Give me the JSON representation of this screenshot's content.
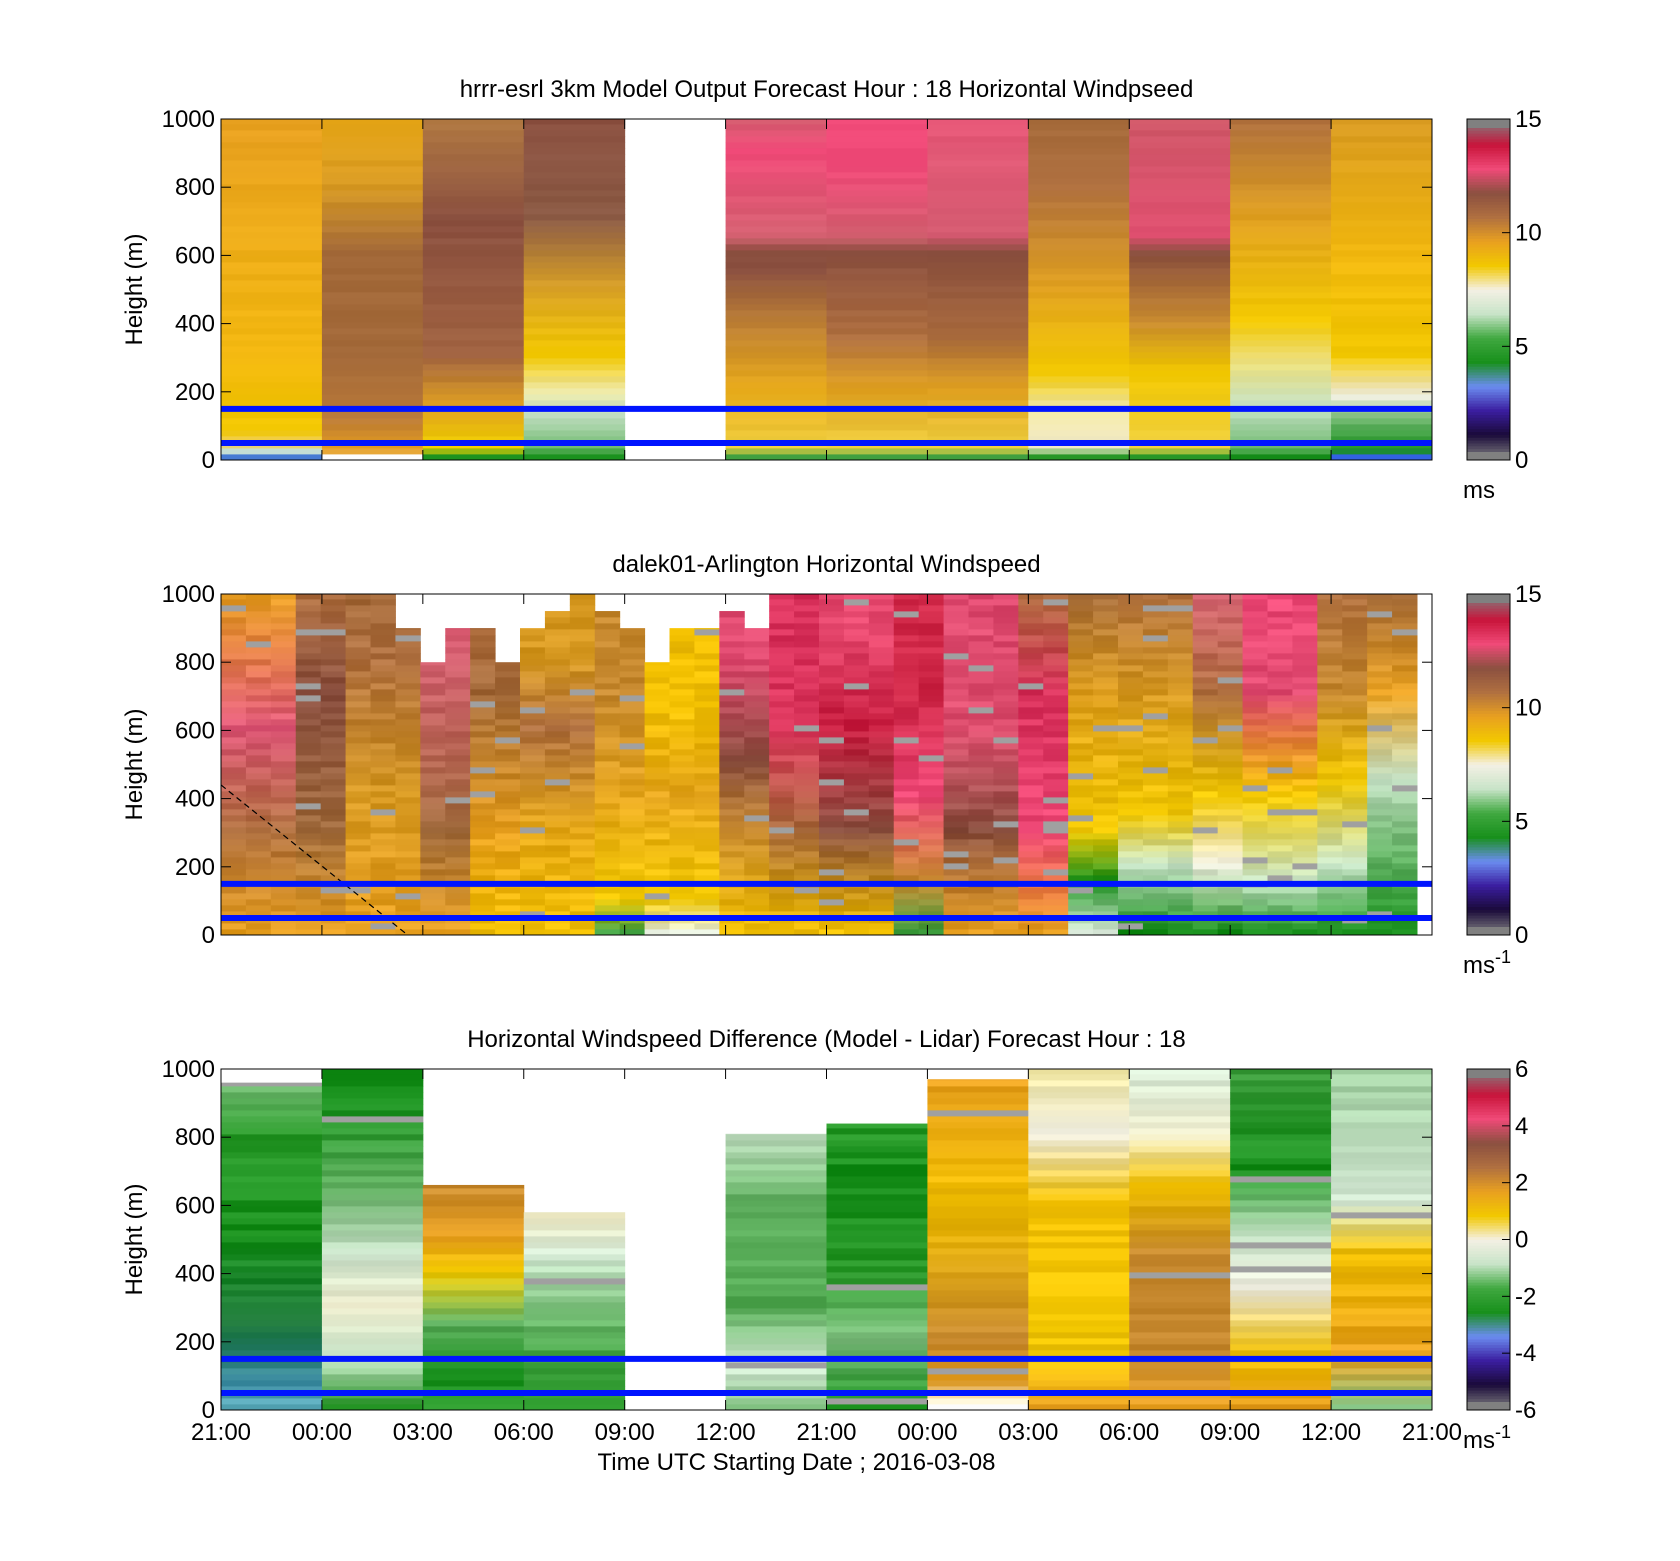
{
  "chart_data": [
    {
      "type": "heatmap",
      "title": "hrrr-esrl 3km Model Output   Forecast Hour : 18 Horizontal Windpseed",
      "ylabel": "Height (m)",
      "xlabel": "",
      "ylim": [
        0,
        1000
      ],
      "yticks": [
        0,
        200,
        400,
        600,
        800,
        1000
      ],
      "xticks": [
        "",
        "",
        "",
        "",
        "",
        "",
        "",
        "",
        "",
        "",
        "",
        "",
        ""
      ],
      "clim": [
        0,
        15
      ],
      "colorbar_ticks": [
        0,
        5,
        10,
        15
      ],
      "units": "ms",
      "reference_lines_m": [
        150,
        50
      ],
      "column_profiles": [
        [
          [
            0,
            "#4a7fd8"
          ],
          [
            20,
            "#d0e6d0"
          ],
          [
            40,
            "#f0d060"
          ],
          [
            80,
            "#f2c800"
          ],
          [
            300,
            "#f3b810"
          ],
          [
            600,
            "#eeae18"
          ],
          [
            1000,
            "#e8a020"
          ]
        ],
        [
          [
            0,
            "#ffffff"
          ],
          [
            20,
            "#e8a020"
          ],
          [
            120,
            "#b87838"
          ],
          [
            300,
            "#a46a3a"
          ],
          [
            600,
            "#a46a3a"
          ],
          [
            800,
            "#d89a22"
          ],
          [
            1000,
            "#e8a818"
          ]
        ],
        [
          [
            0,
            "#18901c"
          ],
          [
            30,
            "#f0d000"
          ],
          [
            150,
            "#e0a020"
          ],
          [
            300,
            "#a06240"
          ],
          [
            700,
            "#8b5040"
          ],
          [
            1000,
            "#b07840"
          ]
        ],
        [
          [
            0,
            "#18901c"
          ],
          [
            40,
            "#7cc07c"
          ],
          [
            130,
            "#c8e2c8"
          ],
          [
            200,
            "#f0e8a0"
          ],
          [
            300,
            "#f2c800"
          ],
          [
            500,
            "#d8a028"
          ],
          [
            700,
            "#8b5a44"
          ],
          [
            1000,
            "#8b5040"
          ]
        ],
        null,
        [
          [
            0,
            "#40a040"
          ],
          [
            30,
            "#f0d040"
          ],
          [
            200,
            "#e6a818"
          ],
          [
            350,
            "#c88a30"
          ],
          [
            550,
            "#8b5040"
          ],
          [
            600,
            "#8b5040"
          ],
          [
            650,
            "#d46070"
          ],
          [
            900,
            "#f04a78"
          ],
          [
            1000,
            "#d46070"
          ]
        ],
        [
          [
            0,
            "#40a040"
          ],
          [
            30,
            "#f0d040"
          ],
          [
            200,
            "#e0a020"
          ],
          [
            350,
            "#b07040"
          ],
          [
            600,
            "#8b5040"
          ],
          [
            650,
            "#d46070"
          ],
          [
            850,
            "#f04a78"
          ],
          [
            1000,
            "#f04a78"
          ]
        ],
        [
          [
            0,
            "#40a040"
          ],
          [
            30,
            "#f0d040"
          ],
          [
            200,
            "#e0a020"
          ],
          [
            350,
            "#a86a3c"
          ],
          [
            600,
            "#8b5040"
          ],
          [
            650,
            "#d45a70"
          ],
          [
            1000,
            "#e85878"
          ]
        ],
        [
          [
            0,
            "#2a9a2a"
          ],
          [
            30,
            "#f0e8c8"
          ],
          [
            150,
            "#f2e8a0"
          ],
          [
            250,
            "#f2c800"
          ],
          [
            500,
            "#e0a020"
          ],
          [
            800,
            "#b07040"
          ],
          [
            1000,
            "#a46a3a"
          ]
        ],
        [
          [
            0,
            "#2a9a2a"
          ],
          [
            30,
            "#f0d040"
          ],
          [
            250,
            "#f2c800"
          ],
          [
            400,
            "#c88a30"
          ],
          [
            600,
            "#8b5040"
          ],
          [
            650,
            "#e05070"
          ],
          [
            1000,
            "#d05868"
          ]
        ],
        [
          [
            0,
            "#18901c"
          ],
          [
            40,
            "#7cc07c"
          ],
          [
            150,
            "#c8e4c8"
          ],
          [
            300,
            "#f2e070"
          ],
          [
            400,
            "#f2c800"
          ],
          [
            700,
            "#e0a020"
          ],
          [
            1000,
            "#b07040"
          ]
        ],
        [
          [
            0,
            "#3060e0"
          ],
          [
            20,
            "#18901c"
          ],
          [
            100,
            "#60b060"
          ],
          [
            180,
            "#f0eee0"
          ],
          [
            300,
            "#f2c800"
          ],
          [
            600,
            "#f2b810"
          ],
          [
            1000,
            "#d89a22"
          ]
        ]
      ]
    },
    {
      "type": "heatmap",
      "title": "dalek01-Arlington  Horizontal Windspeed",
      "ylabel": "Height (m)",
      "xlabel": "",
      "ylim": [
        0,
        1000
      ],
      "yticks": [
        0,
        200,
        400,
        600,
        800,
        1000
      ],
      "xticks": [
        "",
        "",
        "",
        "",
        "",
        "",
        "",
        "",
        "",
        "",
        "",
        "",
        ""
      ],
      "clim": [
        0,
        15
      ],
      "colorbar_ticks": [
        0,
        5,
        10,
        15
      ],
      "units": "ms",
      "units_exponent": "-1",
      "reference_lines_m": [
        150,
        50
      ],
      "dashed_line": {
        "from": [
          0,
          440
        ],
        "to": [
          1.85,
          0
        ]
      },
      "column_tops_m": [
        1000,
        1000,
        1000,
        1000,
        1000,
        1000,
        1000,
        900,
        800,
        900,
        900,
        800,
        900,
        950,
        1000,
        950,
        900,
        800,
        900,
        900,
        950,
        900,
        1000,
        1000,
        1000,
        1000,
        1000,
        1000,
        1000,
        1000,
        1000,
        1000,
        1000,
        1000,
        1000,
        1000,
        1000,
        1000,
        1000,
        1000,
        1000,
        1000,
        1000,
        1000,
        1000,
        1000,
        1000,
        1000
      ],
      "column_profiles": [
        [
          [
            0,
            "#e8a020"
          ],
          [
            300,
            "#b07040"
          ],
          [
            600,
            "#e05878"
          ],
          [
            1000,
            "#e8a020"
          ]
        ],
        [
          [
            0,
            "#e8a020"
          ],
          [
            300,
            "#a06a3c"
          ],
          [
            700,
            "#8b5040"
          ],
          [
            1000,
            "#b07040"
          ]
        ],
        [
          [
            0,
            "#e8a020"
          ],
          [
            400,
            "#d89a22"
          ],
          [
            800,
            "#b07040"
          ],
          [
            1000,
            "#a46a3a"
          ]
        ],
        [
          [
            0,
            "#e8a020"
          ],
          [
            300,
            "#a06a3c"
          ],
          [
            800,
            "#d46070"
          ],
          [
            1000,
            "#e85878"
          ]
        ],
        [
          [
            0,
            "#f2c000"
          ],
          [
            300,
            "#e8a020"
          ],
          [
            700,
            "#a46a3a"
          ],
          [
            900,
            "#b07040"
          ]
        ],
        [
          [
            0,
            "#f2c000"
          ],
          [
            300,
            "#e6a818"
          ],
          [
            600,
            "#b07040"
          ],
          [
            800,
            "#d89a22"
          ]
        ],
        [
          [
            0,
            "#40a040"
          ],
          [
            100,
            "#f2c800"
          ],
          [
            400,
            "#e8a820"
          ],
          [
            700,
            "#c88a30"
          ]
        ],
        [
          [
            0,
            "#e8f0e0"
          ],
          [
            100,
            "#f2c800"
          ],
          [
            400,
            "#e8a820"
          ],
          [
            650,
            "#f2c000"
          ]
        ],
        [
          [
            0,
            "#f2c000"
          ],
          [
            300,
            "#c88a30"
          ],
          [
            500,
            "#8b5040"
          ],
          [
            800,
            "#e04a70"
          ]
        ],
        [
          [
            0,
            "#f2c000"
          ],
          [
            300,
            "#a86a3c"
          ],
          [
            600,
            "#e03a60"
          ],
          [
            850,
            "#d8305a"
          ]
        ],
        [
          [
            0,
            "#f2c000"
          ],
          [
            300,
            "#8b5040"
          ],
          [
            600,
            "#c81e40"
          ],
          [
            900,
            "#e84a70"
          ]
        ],
        [
          [
            0,
            "#40a040"
          ],
          [
            150,
            "#c88a30"
          ],
          [
            400,
            "#f04a78"
          ],
          [
            700,
            "#d02848"
          ]
        ],
        [
          [
            0,
            "#e8a020"
          ],
          [
            300,
            "#8b5040"
          ],
          [
            600,
            "#e05070"
          ],
          [
            1000,
            "#e04a70"
          ]
        ],
        [
          [
            0,
            "#e8a020"
          ],
          [
            300,
            "#f04a78"
          ],
          [
            700,
            "#d8305a"
          ],
          [
            1000,
            "#b07040"
          ]
        ],
        [
          [
            0,
            "#e0f0e0"
          ],
          [
            150,
            "#18901c"
          ],
          [
            300,
            "#f2c800"
          ],
          [
            700,
            "#e0a020"
          ],
          [
            1000,
            "#a46a3a"
          ]
        ],
        [
          [
            0,
            "#18901c"
          ],
          [
            200,
            "#c8e4c8"
          ],
          [
            350,
            "#f2c800"
          ],
          [
            700,
            "#d89a22"
          ],
          [
            1000,
            "#b07040"
          ]
        ],
        [
          [
            0,
            "#18901c"
          ],
          [
            200,
            "#f0eee0"
          ],
          [
            400,
            "#f2c800"
          ],
          [
            700,
            "#b07040"
          ],
          [
            1000,
            "#d46070"
          ]
        ],
        [
          [
            0,
            "#18901c"
          ],
          [
            150,
            "#c8e4c8"
          ],
          [
            400,
            "#f2c800"
          ],
          [
            700,
            "#e04a70"
          ],
          [
            1000,
            "#f04a78"
          ]
        ],
        [
          [
            0,
            "#18901c"
          ],
          [
            200,
            "#c8e4c8"
          ],
          [
            450,
            "#f2c800"
          ],
          [
            700,
            "#c88a30"
          ],
          [
            1000,
            "#b07040"
          ]
        ],
        [
          [
            0,
            "#18901c"
          ],
          [
            300,
            "#80c080"
          ],
          [
            450,
            "#c8e4c8"
          ],
          [
            700,
            "#e8a020"
          ],
          [
            1000,
            "#a46a3a"
          ]
        ]
      ]
    },
    {
      "type": "heatmap",
      "title": "Horizontal Windspeed Difference (Model - Lidar) Forecast Hour : 18",
      "ylabel": "Height (m)",
      "xlabel": "Time UTC  Starting Date ; 2016-03-08",
      "ylim": [
        0,
        1000
      ],
      "yticks": [
        0,
        200,
        400,
        600,
        800,
        1000
      ],
      "xticks": [
        "21:00",
        "00:00",
        "03:00",
        "06:00",
        "09:00",
        "12:00",
        "21:00",
        "00:00",
        "03:00",
        "06:00",
        "09:00",
        "12:00",
        "21:00"
      ],
      "clim": [
        -6,
        6
      ],
      "colorbar_ticks": [
        -6,
        -4,
        -2,
        0,
        2,
        4,
        6
      ],
      "units": "ms",
      "units_exponent": "-1",
      "reference_lines_m": [
        150,
        50
      ],
      "column_tops_m": [
        960,
        1000,
        660,
        580,
        0,
        810,
        840,
        970,
        1000,
        1000,
        1000,
        1000
      ],
      "column_profiles": [
        [
          [
            0,
            "#60b0c0"
          ],
          [
            80,
            "#3a8aa0"
          ],
          [
            250,
            "#1e7a3a"
          ],
          [
            500,
            "#18901c"
          ],
          [
            800,
            "#2a9a2a"
          ],
          [
            960,
            "#80c480"
          ]
        ],
        [
          [
            0,
            "#2a9a2a"
          ],
          [
            150,
            "#c8e4c8"
          ],
          [
            300,
            "#f0eed0"
          ],
          [
            450,
            "#d0e8d0"
          ],
          [
            650,
            "#60b060"
          ],
          [
            900,
            "#18901c"
          ],
          [
            1000,
            "#18901c"
          ]
        ],
        [
          [
            0,
            "#2a9a2a"
          ],
          [
            100,
            "#18901c"
          ],
          [
            250,
            "#60b060"
          ],
          [
            400,
            "#f2c800"
          ],
          [
            500,
            "#e8a020"
          ],
          [
            660,
            "#c88a30"
          ]
        ],
        [
          [
            0,
            "#2a9a2a"
          ],
          [
            150,
            "#40a040"
          ],
          [
            300,
            "#80c480"
          ],
          [
            450,
            "#d8ecd8"
          ],
          [
            580,
            "#f0e8c0"
          ]
        ],
        null,
        [
          [
            0,
            "#80c080"
          ],
          [
            120,
            "#d8ecd8"
          ],
          [
            300,
            "#50a850"
          ],
          [
            600,
            "#60b060"
          ],
          [
            810,
            "#c8e4c8"
          ]
        ],
        [
          [
            0,
            "#18901c"
          ],
          [
            200,
            "#80c080"
          ],
          [
            400,
            "#2a9a2a"
          ],
          [
            700,
            "#18901c"
          ],
          [
            840,
            "#2a9a2a"
          ]
        ],
        [
          [
            0,
            "#ffffff"
          ],
          [
            80,
            "#e8a020"
          ],
          [
            200,
            "#c88a30"
          ],
          [
            600,
            "#f2c000"
          ],
          [
            970,
            "#e8a020"
          ]
        ],
        [
          [
            0,
            "#e8a020"
          ],
          [
            150,
            "#f2c800"
          ],
          [
            600,
            "#f2c000"
          ],
          [
            800,
            "#f0eee0"
          ],
          [
            1000,
            "#f2e8a0"
          ]
        ],
        [
          [
            0,
            "#e8a020"
          ],
          [
            150,
            "#c88a30"
          ],
          [
            450,
            "#c88a30"
          ],
          [
            650,
            "#f2c000"
          ],
          [
            800,
            "#f0eed0"
          ],
          [
            1000,
            "#d8ecd8"
          ]
        ],
        [
          [
            0,
            "#e8a020"
          ],
          [
            150,
            "#f2c000"
          ],
          [
            350,
            "#f0eee0"
          ],
          [
            500,
            "#c8e4c8"
          ],
          [
            700,
            "#18901c"
          ],
          [
            1000,
            "#40a040"
          ]
        ],
        [
          [
            0,
            "#80c080"
          ],
          [
            150,
            "#e8a020"
          ],
          [
            450,
            "#f2c000"
          ],
          [
            600,
            "#d8ecd8"
          ],
          [
            1000,
            "#a0d0a0"
          ]
        ]
      ]
    }
  ],
  "colormaps": {
    "speed": [
      "#808080",
      "#1a0a3a",
      "#3b1ea0",
      "#6b8cf0",
      "#18901c",
      "#40a840",
      "#c8e4c8",
      "#f4f0e4",
      "#f2c800",
      "#e8a020",
      "#b07040",
      "#8b5040",
      "#f04a78",
      "#c8143a",
      "#808080"
    ],
    "diff": [
      "#808080",
      "#1a0a3a",
      "#3b1ea0",
      "#6b8cf0",
      "#18901c",
      "#40a840",
      "#c8e4c8",
      "#f4f0e4",
      "#f2c800",
      "#e8a020",
      "#b07040",
      "#8b5040",
      "#f04a78",
      "#c8143a",
      "#808080"
    ]
  },
  "colors": {
    "reference_line": "#0014ff",
    "axis": "#000000",
    "missing": "#ffffff"
  }
}
